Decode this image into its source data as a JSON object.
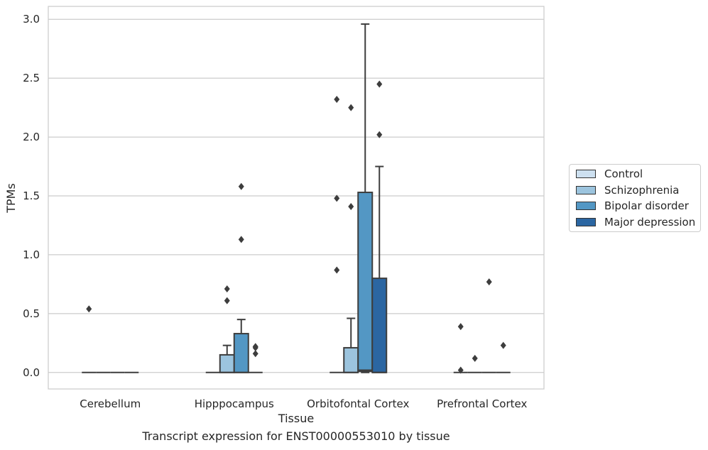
{
  "chart_data": {
    "type": "box",
    "caption": "Transcript expression for ENST00000553010 by tissue",
    "xlabel": "Tissue",
    "ylabel": "TPMs",
    "ylim": [
      -0.14,
      3.11
    ],
    "yticks": [
      0.0,
      0.5,
      1.0,
      1.5,
      2.0,
      2.5,
      3.0
    ],
    "ytick_labels": [
      "0.0",
      "0.5",
      "1.0",
      "1.5",
      "2.0",
      "2.5",
      "3.0"
    ],
    "grid": "horizontal",
    "legend_position": "right",
    "categories": [
      "Cerebellum",
      "Hipppocampus",
      "Orbitofontal Cortex",
      "Prefrontal Cortex"
    ],
    "series": [
      {
        "name": "Control",
        "color": "#cde0f0",
        "boxes": [
          {
            "q1": 0,
            "median": 0,
            "q3": 0,
            "whislo": 0,
            "whishi": 0,
            "fliers": [
              0.54
            ]
          },
          {
            "q1": 0,
            "median": 0,
            "q3": 0,
            "whislo": 0,
            "whishi": 0,
            "fliers": []
          },
          {
            "q1": 0,
            "median": 0,
            "q3": 0,
            "whislo": 0,
            "whishi": 0,
            "fliers": [
              0.87,
              1.48,
              2.32
            ]
          },
          {
            "q1": 0,
            "median": 0,
            "q3": 0,
            "whislo": 0,
            "whishi": 0,
            "fliers": [
              0.02,
              0.39
            ]
          }
        ]
      },
      {
        "name": "Schizophrenia",
        "color": "#9cc4de",
        "boxes": [
          {
            "q1": 0,
            "median": 0,
            "q3": 0,
            "whislo": 0,
            "whishi": 0,
            "fliers": []
          },
          {
            "q1": 0,
            "median": 0,
            "q3": 0.15,
            "whislo": 0,
            "whishi": 0.23,
            "fliers": [
              0.61,
              0.71
            ]
          },
          {
            "q1": 0,
            "median": 0,
            "q3": 0.21,
            "whislo": 0,
            "whishi": 0.46,
            "fliers": [
              1.41,
              2.25
            ]
          },
          {
            "q1": 0,
            "median": 0,
            "q3": 0,
            "whislo": 0,
            "whishi": 0,
            "fliers": [
              0.12
            ]
          }
        ]
      },
      {
        "name": "Bipolar disorder",
        "color": "#5397c4",
        "boxes": [
          {
            "q1": 0,
            "median": 0,
            "q3": 0,
            "whislo": 0,
            "whishi": 0,
            "fliers": []
          },
          {
            "q1": 0,
            "median": 0,
            "q3": 0.33,
            "whislo": 0,
            "whishi": 0.45,
            "fliers": [
              1.13,
              1.58
            ]
          },
          {
            "q1": 0.01,
            "median": 0.02,
            "q3": 1.53,
            "whislo": 0,
            "whishi": 2.96,
            "fliers": []
          },
          {
            "q1": 0,
            "median": 0,
            "q3": 0,
            "whislo": 0,
            "whishi": 0,
            "fliers": [
              0.77
            ]
          }
        ]
      },
      {
        "name": "Major depression",
        "color": "#2b66a2",
        "boxes": [
          {
            "q1": 0,
            "median": 0,
            "q3": 0,
            "whislo": 0,
            "whishi": 0,
            "fliers": []
          },
          {
            "q1": 0,
            "median": 0,
            "q3": 0,
            "whislo": 0,
            "whishi": 0,
            "fliers": [
              0.16,
              0.21,
              0.22
            ]
          },
          {
            "q1": 0,
            "median": 0,
            "q3": 0.8,
            "whislo": 0,
            "whishi": 1.75,
            "fliers": [
              2.02,
              2.45
            ]
          },
          {
            "q1": 0,
            "median": 0,
            "q3": 0,
            "whislo": 0,
            "whishi": 0,
            "fliers": [
              0.23
            ]
          }
        ]
      }
    ]
  }
}
